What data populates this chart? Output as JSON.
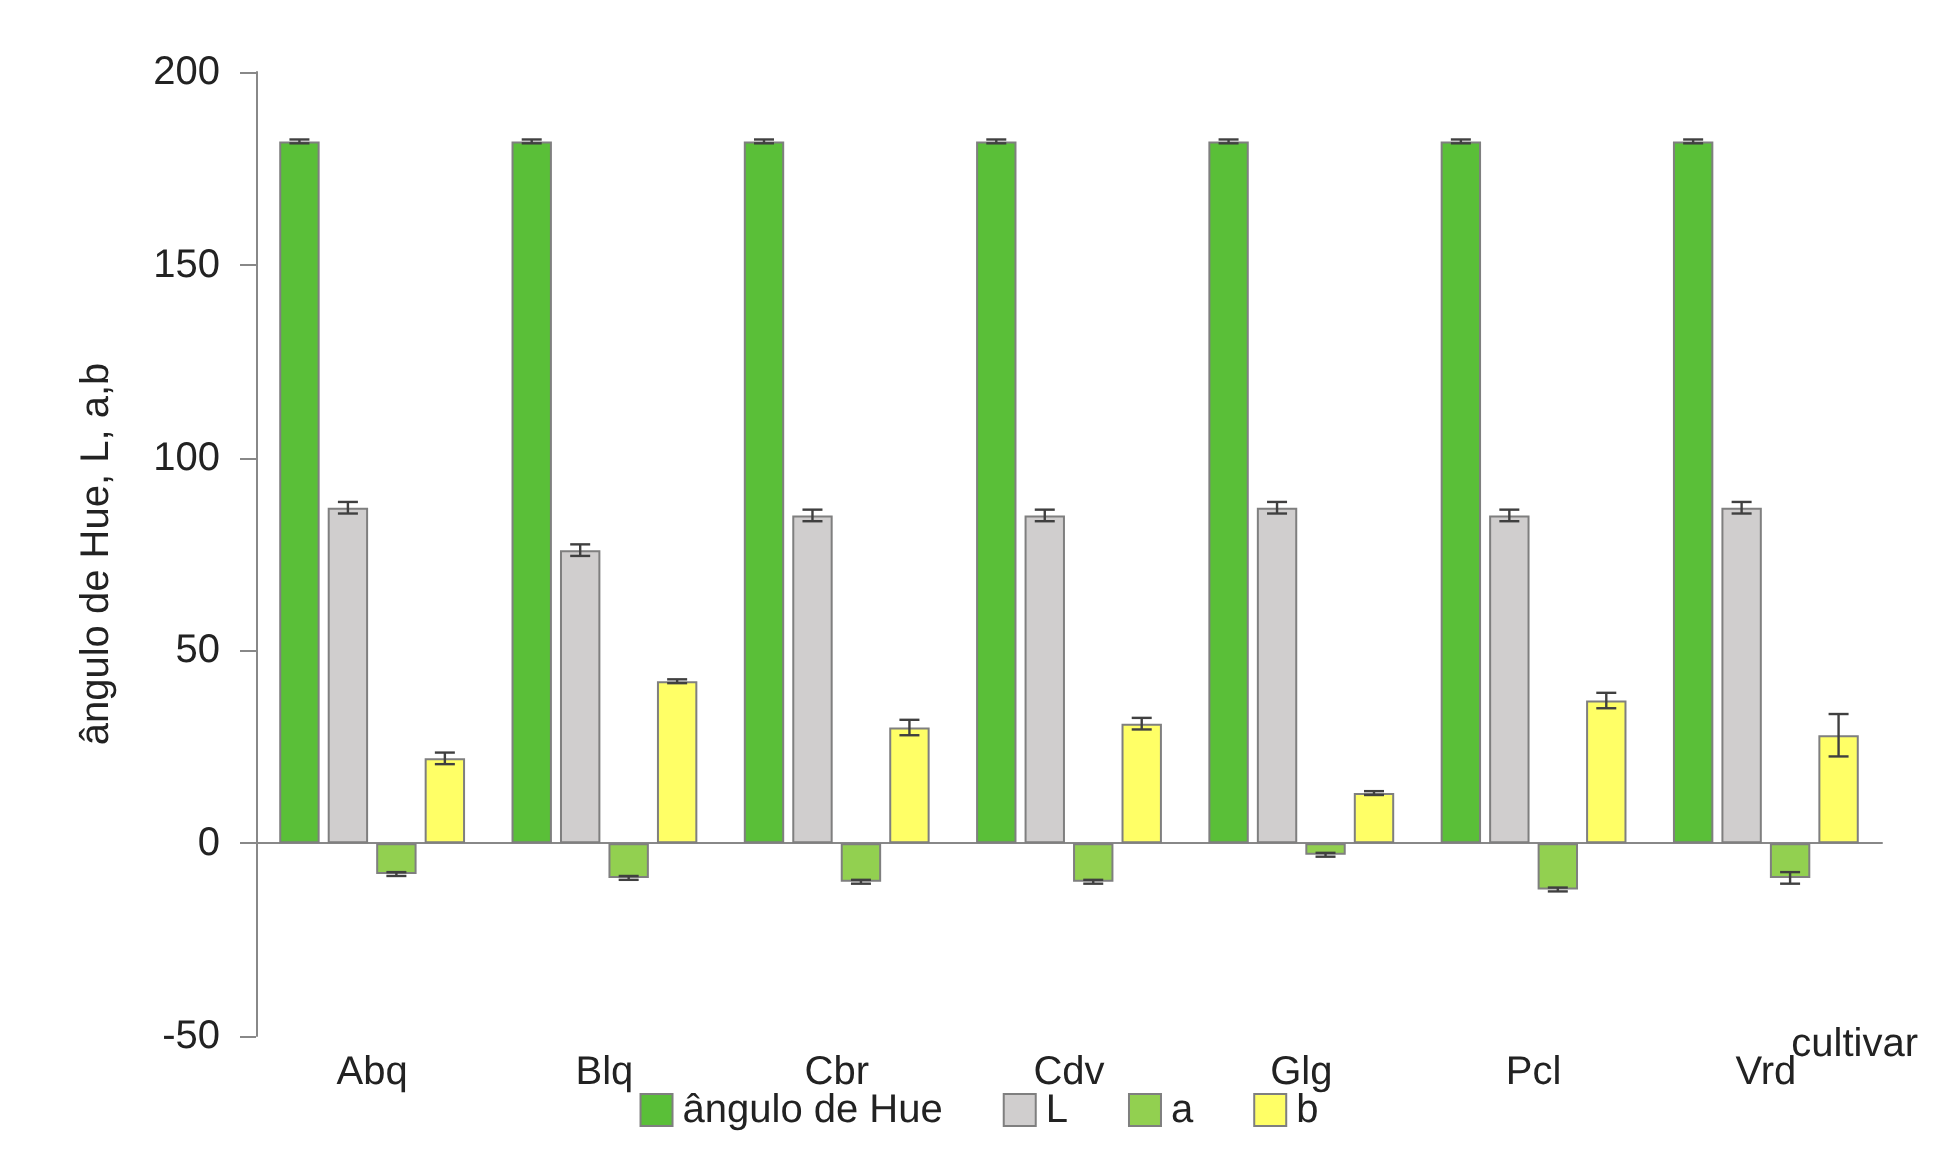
{
  "chart_data": {
    "type": "bar",
    "xlabel": "cultivar",
    "ylabel": "ângulo de Hue, L, a,b",
    "categories": [
      "Abq",
      "Blq",
      "Cbr",
      "Cdv",
      "Glg",
      "Pcl",
      "Vrd"
    ],
    "series": [
      {
        "name": "ângulo de Hue",
        "color": "#5abf38",
        "values": [
          182,
          182,
          182,
          182,
          182,
          182,
          182
        ],
        "errors": [
          0.5,
          0.5,
          0.5,
          0.5,
          0.5,
          0.5,
          0.5
        ]
      },
      {
        "name": "L",
        "color": "#d0cece",
        "values": [
          87,
          76,
          85,
          85,
          87,
          85,
          87
        ],
        "errors": [
          1.5,
          1.5,
          1.5,
          1.5,
          1.5,
          1.5,
          1.5
        ]
      },
      {
        "name": "a",
        "color": "#92d050",
        "values": [
          -8,
          -9,
          -10,
          -10,
          -3,
          -12,
          -9
        ],
        "errors": [
          0.5,
          0.5,
          0.5,
          0.5,
          0.5,
          0.5,
          1.5
        ]
      },
      {
        "name": "b",
        "color": "#ffff66",
        "values": [
          22,
          42,
          30,
          31,
          13,
          37,
          28
        ],
        "errors": [
          1.5,
          0.5,
          2,
          1.5,
          0.5,
          2,
          5.5
        ]
      }
    ],
    "ylim": [
      -50,
      200
    ],
    "yticks": [
      -50,
      0,
      50,
      100,
      150,
      200
    ],
    "legend": "bottom"
  }
}
